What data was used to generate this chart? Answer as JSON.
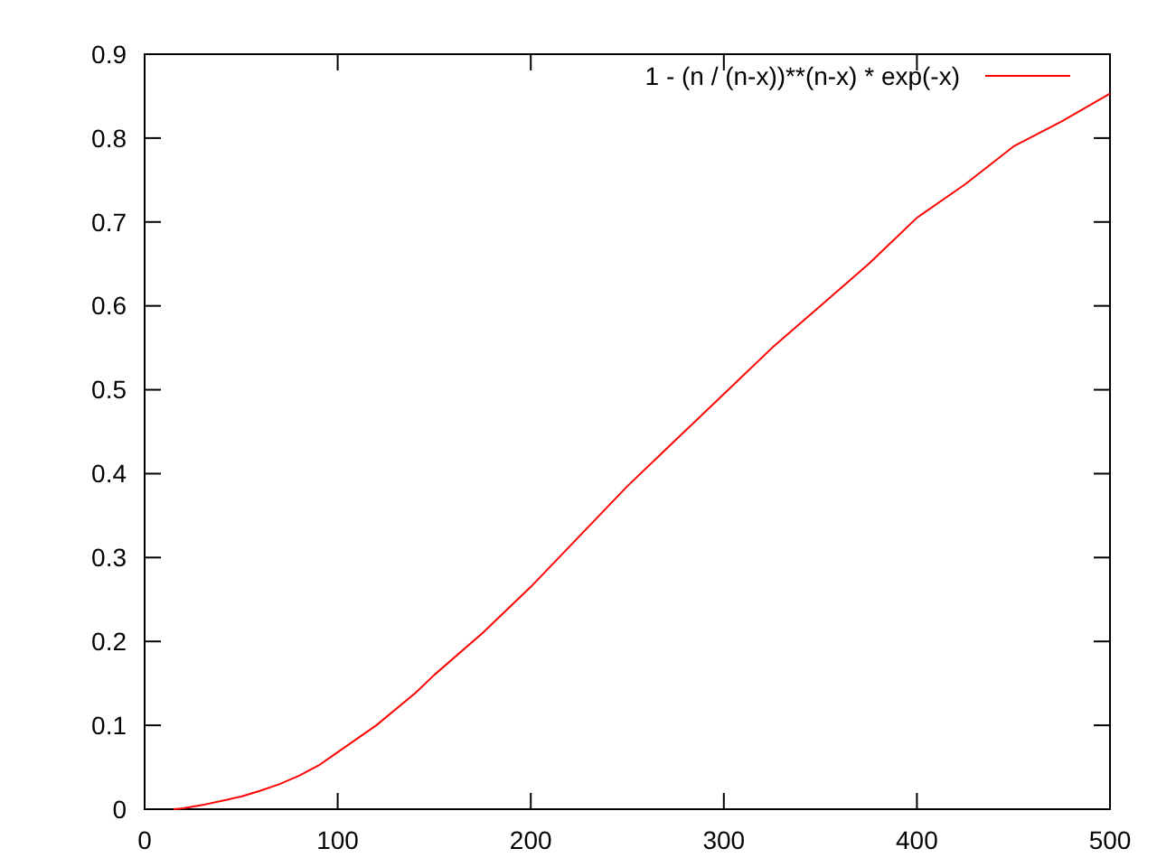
{
  "chart_data": {
    "type": "line",
    "xlim": [
      0,
      500
    ],
    "ylim": [
      0,
      0.9
    ],
    "xticks": [
      0,
      100,
      200,
      300,
      400,
      500
    ],
    "yticks": [
      0,
      0.1,
      0.2,
      0.3,
      0.4,
      0.5,
      0.6,
      0.7,
      0.8,
      0.9
    ],
    "legend": "top right",
    "grid": false,
    "series": [
      {
        "name": "1 - (n / (n-x))**(n-x) * exp(-x)",
        "color": "#ff0000",
        "x": [
          15,
          20,
          30,
          40,
          50,
          60,
          70,
          80,
          90,
          100,
          120,
          140,
          150,
          175,
          200,
          225,
          250,
          275,
          300,
          325,
          350,
          375,
          400,
          425,
          450,
          475,
          500
        ],
        "values": [
          0,
          0.001,
          0.005,
          0.01,
          0.015,
          0.022,
          0.03,
          0.04,
          0.052,
          0.068,
          0.1,
          0.138,
          0.16,
          0.21,
          0.265,
          0.325,
          0.385,
          0.44,
          0.495,
          0.55,
          0.6,
          0.65,
          0.705,
          0.745,
          0.79,
          0.82,
          0.853
        ]
      }
    ]
  }
}
